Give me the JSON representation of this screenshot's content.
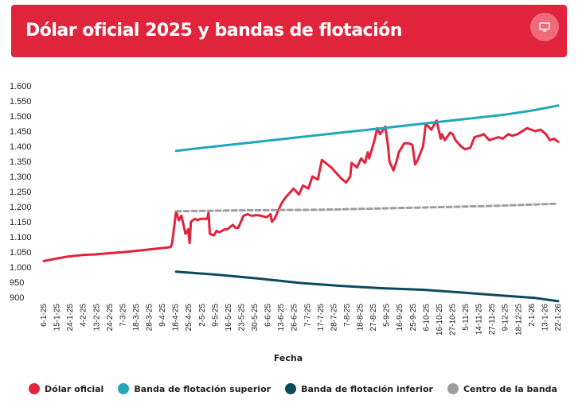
{
  "header": {
    "title": "Dólar oficial 2025 y bandas de flotación"
  },
  "icons": {
    "display": "monitor-icon"
  },
  "colors": {
    "header_bg": "#e0243c",
    "oficial": "#e0243c",
    "superior": "#21a8b8",
    "inferior": "#0b4a5c",
    "centro": "#9e9e9e"
  },
  "legend": [
    {
      "label": "Dólar oficial",
      "color": "#e0243c"
    },
    {
      "label": "Banda de flotación superior",
      "color": "#21a8b8"
    },
    {
      "label": "Banda de flotación inferior",
      "color": "#0b4a5c"
    },
    {
      "label": "Centro de la banda",
      "color": "#9e9e9e"
    }
  ],
  "chart_data": {
    "type": "line",
    "title": "Dólar oficial 2025 y bandas de flotación",
    "xlabel": "Fecha",
    "ylabel": "",
    "ylim": [
      900,
      1600
    ],
    "yticks": [
      "900",
      "950",
      "1.000",
      "1.050",
      "1.100",
      "1.150",
      "1.200",
      "1.250",
      "1.300",
      "1.350",
      "1.400",
      "1.450",
      "1.500",
      "1.550",
      "1.600"
    ],
    "x_start": "2025-01-06",
    "x_end": "2026-01-22",
    "xticks": [
      "6-1-25",
      "15-1-25",
      "24-1-25",
      "4-2-25",
      "13-2-25",
      "24-2-25",
      "7-3-25",
      "18-3-25",
      "28-3-25",
      "9-4-25",
      "18-4-25",
      "25-4-25",
      "2-5-25",
      "9-5-25",
      "16-5-25",
      "23-5-25",
      "30-5-25",
      "6-6-25",
      "13-6-25",
      "26-6-25",
      "7-7-25",
      "17-7-25",
      "28-7-25",
      "7-8-25",
      "18-8-25",
      "27-8-25",
      "5-9-25",
      "16-9-25",
      "25-9-25",
      "6-10-25",
      "16-10-25",
      "27-10-25",
      "5-11-25",
      "14-11-25",
      "27-11-25",
      "9-12-25",
      "18-12-25",
      "2-1-26",
      "13-1-26",
      "22-1-26"
    ],
    "grid": false,
    "legend_position": "bottom",
    "series": [
      {
        "name": "Dólar oficial",
        "color": "#e0243c",
        "dash": false,
        "points": [
          [
            "2025-01-06",
            1020
          ],
          [
            "2025-01-15",
            1028
          ],
          [
            "2025-01-24",
            1035
          ],
          [
            "2025-02-04",
            1040
          ],
          [
            "2025-02-13",
            1042
          ],
          [
            "2025-02-24",
            1046
          ],
          [
            "2025-03-07",
            1050
          ],
          [
            "2025-03-18",
            1055
          ],
          [
            "2025-03-28",
            1060
          ],
          [
            "2025-04-10",
            1066
          ],
          [
            "2025-04-11",
            1078
          ],
          [
            "2025-04-14",
            1185
          ],
          [
            "2025-04-16",
            1155
          ],
          [
            "2025-04-18",
            1170
          ],
          [
            "2025-04-21",
            1110
          ],
          [
            "2025-04-23",
            1125
          ],
          [
            "2025-04-24",
            1080
          ],
          [
            "2025-04-25",
            1150
          ],
          [
            "2025-04-28",
            1160
          ],
          [
            "2025-04-30",
            1155
          ],
          [
            "2025-05-02",
            1160
          ],
          [
            "2025-05-07",
            1160
          ],
          [
            "2025-05-08",
            1180
          ],
          [
            "2025-05-09",
            1110
          ],
          [
            "2025-05-12",
            1105
          ],
          [
            "2025-05-14",
            1120
          ],
          [
            "2025-05-16",
            1115
          ],
          [
            "2025-05-20",
            1125
          ],
          [
            "2025-05-22",
            1125
          ],
          [
            "2025-05-26",
            1140
          ],
          [
            "2025-05-28",
            1130
          ],
          [
            "2025-05-30",
            1130
          ],
          [
            "2025-06-03",
            1170
          ],
          [
            "2025-06-06",
            1175
          ],
          [
            "2025-06-09",
            1170
          ],
          [
            "2025-06-13",
            1172
          ],
          [
            "2025-06-16",
            1170
          ],
          [
            "2025-06-20",
            1165
          ],
          [
            "2025-06-23",
            1175
          ],
          [
            "2025-06-24",
            1150
          ],
          [
            "2025-06-26",
            1160
          ],
          [
            "2025-07-01",
            1210
          ],
          [
            "2025-07-04",
            1230
          ],
          [
            "2025-07-07",
            1245
          ],
          [
            "2025-07-10",
            1260
          ],
          [
            "2025-07-14",
            1240
          ],
          [
            "2025-07-17",
            1270
          ],
          [
            "2025-07-21",
            1260
          ],
          [
            "2025-07-24",
            1300
          ],
          [
            "2025-07-28",
            1290
          ],
          [
            "2025-07-31",
            1355
          ],
          [
            "2025-08-04",
            1340
          ],
          [
            "2025-08-07",
            1330
          ],
          [
            "2025-08-11",
            1310
          ],
          [
            "2025-08-14",
            1295
          ],
          [
            "2025-08-18",
            1280
          ],
          [
            "2025-08-21",
            1300
          ],
          [
            "2025-08-22",
            1345
          ],
          [
            "2025-08-26",
            1330
          ],
          [
            "2025-08-29",
            1360
          ],
          [
            "2025-09-01",
            1345
          ],
          [
            "2025-09-03",
            1380
          ],
          [
            "2025-09-04",
            1360
          ],
          [
            "2025-09-08",
            1420
          ],
          [
            "2025-09-10",
            1460
          ],
          [
            "2025-09-12",
            1440
          ],
          [
            "2025-09-16",
            1465
          ],
          [
            "2025-09-18",
            1400
          ],
          [
            "2025-09-19",
            1350
          ],
          [
            "2025-09-22",
            1320
          ],
          [
            "2025-09-24",
            1345
          ],
          [
            "2025-09-26",
            1380
          ],
          [
            "2025-09-30",
            1410
          ],
          [
            "2025-10-03",
            1410
          ],
          [
            "2025-10-06",
            1405
          ],
          [
            "2025-10-08",
            1340
          ],
          [
            "2025-10-10",
            1355
          ],
          [
            "2025-10-14",
            1400
          ],
          [
            "2025-10-16",
            1475
          ],
          [
            "2025-10-20",
            1455
          ],
          [
            "2025-10-22",
            1470
          ],
          [
            "2025-10-24",
            1485
          ],
          [
            "2025-10-27",
            1425
          ],
          [
            "2025-10-28",
            1440
          ],
          [
            "2025-10-30",
            1420
          ],
          [
            "2025-11-03",
            1445
          ],
          [
            "2025-11-05",
            1440
          ],
          [
            "2025-11-07",
            1420
          ],
          [
            "2025-11-11",
            1400
          ],
          [
            "2025-11-14",
            1390
          ],
          [
            "2025-11-18",
            1395
          ],
          [
            "2025-11-21",
            1430
          ],
          [
            "2025-11-25",
            1435
          ],
          [
            "2025-11-28",
            1440
          ],
          [
            "2025-12-02",
            1420
          ],
          [
            "2025-12-05",
            1425
          ],
          [
            "2025-12-09",
            1430
          ],
          [
            "2025-12-12",
            1425
          ],
          [
            "2025-12-16",
            1440
          ],
          [
            "2025-12-19",
            1435
          ],
          [
            "2025-12-23",
            1440
          ],
          [
            "2025-12-30",
            1460
          ],
          [
            "2026-01-05",
            1450
          ],
          [
            "2026-01-09",
            1455
          ],
          [
            "2026-01-13",
            1440
          ],
          [
            "2026-01-16",
            1420
          ],
          [
            "2026-01-19",
            1425
          ],
          [
            "2026-01-22",
            1415
          ]
        ]
      },
      {
        "name": "Banda de flotación superior",
        "color": "#21a8b8",
        "dash": false,
        "points": [
          [
            "2025-04-14",
            1385
          ],
          [
            "2025-05-14",
            1400
          ],
          [
            "2025-06-14",
            1415
          ],
          [
            "2025-07-14",
            1430
          ],
          [
            "2025-08-14",
            1445
          ],
          [
            "2025-09-14",
            1460
          ],
          [
            "2025-10-14",
            1475
          ],
          [
            "2025-11-14",
            1490
          ],
          [
            "2025-12-14",
            1505
          ],
          [
            "2026-01-05",
            1520
          ],
          [
            "2026-01-22",
            1535
          ]
        ]
      },
      {
        "name": "Banda de flotación inferior",
        "color": "#0b4a5c",
        "dash": false,
        "points": [
          [
            "2025-04-14",
            985
          ],
          [
            "2025-05-14",
            975
          ],
          [
            "2025-06-14",
            962
          ],
          [
            "2025-07-14",
            948
          ],
          [
            "2025-08-14",
            938
          ],
          [
            "2025-09-14",
            930
          ],
          [
            "2025-10-14",
            925
          ],
          [
            "2025-11-14",
            915
          ],
          [
            "2025-12-14",
            905
          ],
          [
            "2026-01-05",
            898
          ],
          [
            "2026-01-22",
            887
          ]
        ]
      },
      {
        "name": "Centro de la banda",
        "color": "#9e9e9e",
        "dash": true,
        "points": [
          [
            "2025-04-14",
            1185
          ],
          [
            "2025-06-01",
            1188
          ],
          [
            "2025-08-01",
            1190
          ],
          [
            "2025-10-01",
            1196
          ],
          [
            "2025-12-01",
            1202
          ],
          [
            "2026-01-22",
            1210
          ]
        ]
      }
    ]
  }
}
